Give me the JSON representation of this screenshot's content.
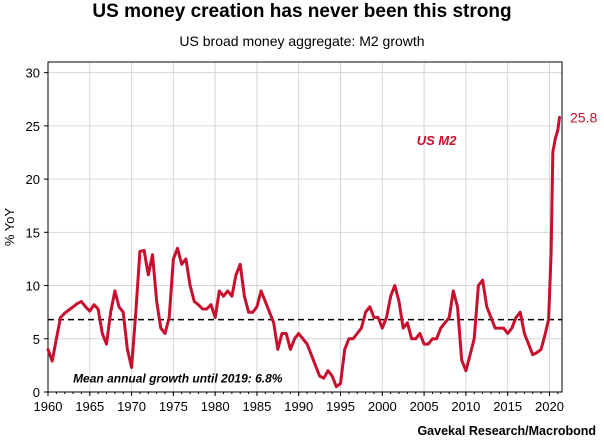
{
  "chart_data": {
    "type": "line",
    "title": "US money creation has never been this strong",
    "subtitle": "US broad money aggregate: M2 growth",
    "ylabel": "% YoY",
    "xlabel": "",
    "xlim": [
      1960,
      2021.5
    ],
    "ylim": [
      0,
      31
    ],
    "x_ticks": [
      1960,
      1965,
      1970,
      1975,
      1980,
      1985,
      1990,
      1995,
      2000,
      2005,
      2010,
      2015,
      2020
    ],
    "y_ticks": [
      0,
      5,
      10,
      15,
      20,
      25,
      30
    ],
    "grid": true,
    "series": [
      {
        "name": "US M2",
        "color": "#c8102e",
        "x": [
          1960.0,
          1960.5,
          1961.0,
          1961.5,
          1962.0,
          1962.5,
          1963.0,
          1963.5,
          1964.0,
          1964.5,
          1965.0,
          1965.5,
          1966.0,
          1966.5,
          1967.0,
          1967.5,
          1968.0,
          1968.5,
          1969.0,
          1969.5,
          1970.0,
          1970.5,
          1971.0,
          1971.5,
          1972.0,
          1972.5,
          1973.0,
          1973.5,
          1974.0,
          1974.5,
          1975.0,
          1975.5,
          1976.0,
          1976.5,
          1977.0,
          1977.5,
          1978.0,
          1978.5,
          1979.0,
          1979.5,
          1980.0,
          1980.5,
          1981.0,
          1981.5,
          1982.0,
          1982.5,
          1983.0,
          1983.5,
          1984.0,
          1984.5,
          1985.0,
          1985.5,
          1986.0,
          1986.5,
          1987.0,
          1987.5,
          1988.0,
          1988.5,
          1989.0,
          1989.5,
          1990.0,
          1990.5,
          1991.0,
          1991.5,
          1992.0,
          1992.5,
          1993.0,
          1993.5,
          1994.0,
          1994.5,
          1995.0,
          1995.5,
          1996.0,
          1996.5,
          1997.0,
          1997.5,
          1998.0,
          1998.5,
          1999.0,
          1999.5,
          2000.0,
          2000.5,
          2001.0,
          2001.5,
          2002.0,
          2002.5,
          2003.0,
          2003.5,
          2004.0,
          2004.5,
          2005.0,
          2005.5,
          2006.0,
          2006.5,
          2007.0,
          2007.5,
          2008.0,
          2008.5,
          2009.0,
          2009.5,
          2010.0,
          2010.5,
          2011.0,
          2011.5,
          2012.0,
          2012.5,
          2013.0,
          2013.5,
          2014.0,
          2014.5,
          2015.0,
          2015.5,
          2016.0,
          2016.5,
          2017.0,
          2017.5,
          2018.0,
          2018.5,
          2019.0,
          2019.5,
          2019.9,
          2020.2,
          2020.4,
          2020.7,
          2021.0,
          2021.2
        ],
        "values": [
          4.0,
          2.9,
          5.0,
          7.0,
          7.4,
          7.7,
          8.0,
          8.3,
          8.5,
          8.0,
          7.6,
          8.2,
          7.8,
          5.5,
          4.5,
          7.5,
          9.5,
          8.0,
          7.5,
          4.0,
          2.3,
          7.5,
          13.2,
          13.3,
          11.0,
          12.9,
          8.5,
          6.0,
          5.5,
          7.0,
          12.5,
          13.5,
          12.0,
          12.5,
          10.0,
          8.5,
          8.2,
          7.8,
          7.8,
          8.2,
          7.0,
          9.5,
          9.0,
          9.5,
          9.0,
          11.0,
          12.0,
          9.0,
          7.5,
          7.5,
          8.0,
          9.5,
          8.5,
          7.5,
          6.5,
          4.0,
          5.5,
          5.5,
          4.0,
          5.0,
          5.5,
          5.0,
          4.5,
          3.5,
          2.5,
          1.5,
          1.3,
          2.0,
          1.5,
          0.5,
          0.8,
          4.0,
          5.0,
          5.0,
          5.5,
          6.0,
          7.5,
          8.0,
          7.0,
          7.0,
          6.0,
          7.0,
          9.0,
          10.0,
          8.5,
          6.0,
          6.5,
          5.0,
          5.0,
          5.5,
          4.5,
          4.5,
          5.0,
          5.0,
          6.0,
          6.5,
          7.0,
          9.5,
          8.0,
          3.0,
          2.0,
          3.5,
          5.0,
          10.0,
          10.5,
          8.0,
          7.0,
          6.0,
          6.0,
          6.0,
          5.5,
          6.0,
          7.0,
          7.5,
          5.5,
          4.5,
          3.5,
          3.7,
          4.0,
          5.5,
          6.8,
          13.0,
          22.5,
          23.8,
          24.6,
          25.8
        ]
      }
    ],
    "reference_line": {
      "value": 6.8,
      "label": "Mean annual growth until 2019: 6.8%",
      "style": "dashed"
    },
    "series_label": "US M2",
    "end_label": "25.8",
    "source": "Gavekal Research/Macrobond"
  }
}
